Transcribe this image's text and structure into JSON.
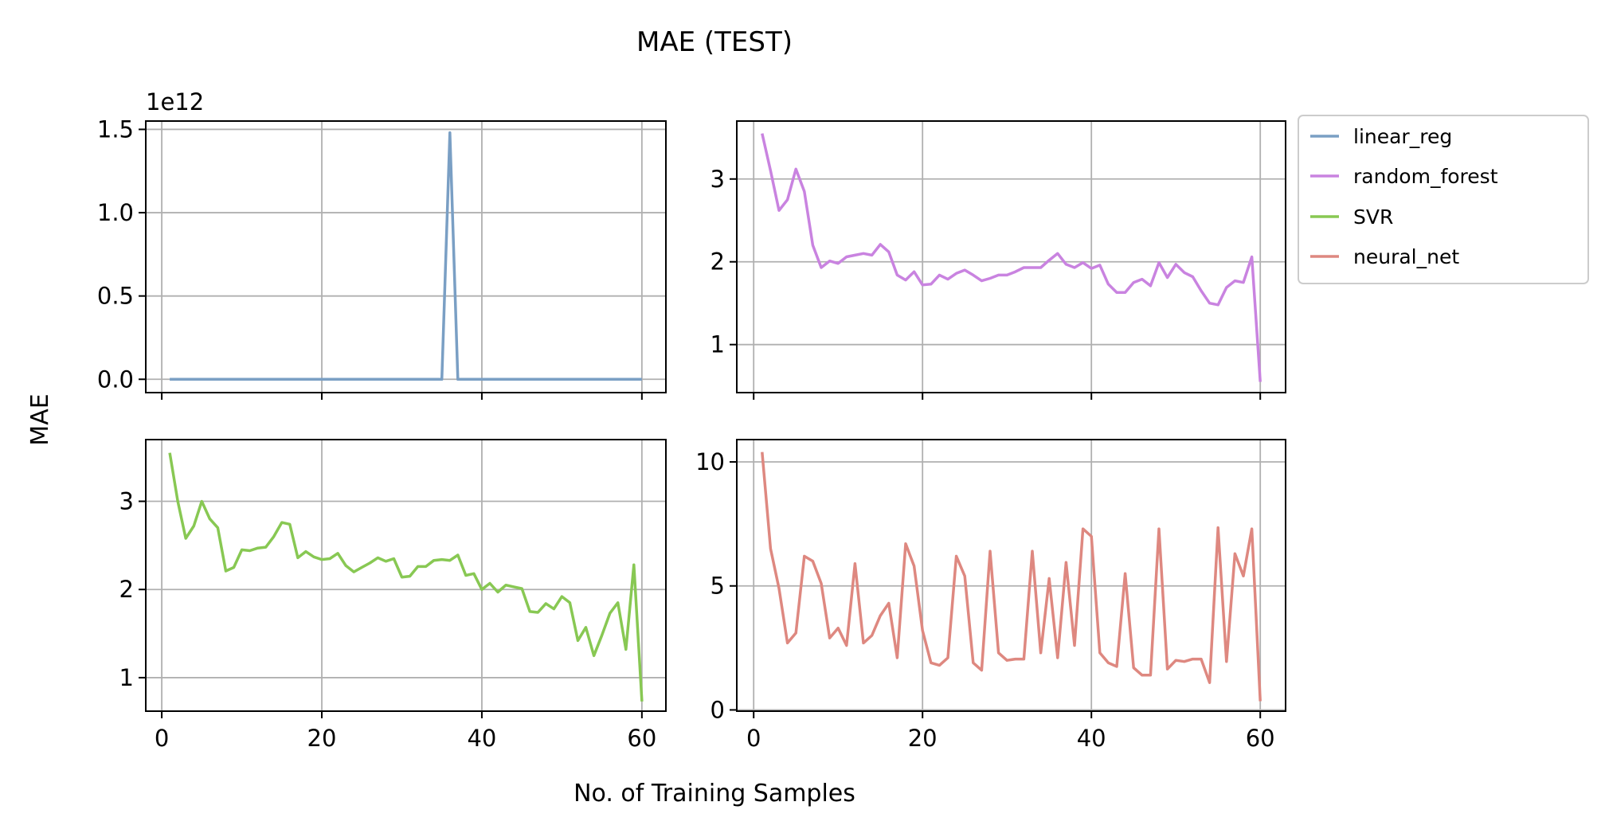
{
  "figure": {
    "title": "MAE (TEST)",
    "xlabel": "No. of Training Samples",
    "ylabel": "MAE"
  },
  "legend": {
    "placement": "right of top-right panel",
    "entries": [
      {
        "label": "linear_reg",
        "color": "#7a9fc4"
      },
      {
        "label": "random_forest",
        "color": "#c983e0"
      },
      {
        "label": "SVR",
        "color": "#88c853"
      },
      {
        "label": "neural_net",
        "color": "#de8880"
      }
    ]
  },
  "chart_data": [
    {
      "type": "line",
      "panel": "top-left",
      "series": [
        {
          "name": "linear_reg",
          "color": "#7a9fc4",
          "values": [
            0,
            0,
            0,
            0,
            0,
            0,
            0,
            0,
            0,
            0,
            0,
            0,
            0,
            0,
            0,
            0,
            0,
            0,
            0,
            0,
            0,
            0,
            0,
            0,
            0,
            0,
            0,
            0,
            0,
            0,
            0,
            0,
            0,
            0,
            0,
            1.48,
            0,
            0,
            0,
            0,
            0,
            0,
            0,
            0,
            0,
            0,
            0,
            0,
            0,
            0,
            0,
            0,
            0,
            0,
            0,
            0,
            0,
            0,
            0,
            0
          ]
        }
      ],
      "x": {
        "start": 1,
        "step": 1
      },
      "xlim": [
        -2,
        63
      ],
      "ylim": [
        -0.08,
        1.55
      ],
      "yticks": [
        0.0,
        0.5,
        1.0,
        1.5
      ],
      "ytick_labels": [
        "0.0",
        "0.5",
        "1.0",
        "1.5"
      ],
      "xticks": [
        0,
        20,
        40,
        60
      ],
      "xtick_labels": [],
      "offset_text": "1e12",
      "grid": true
    },
    {
      "type": "line",
      "panel": "top-right",
      "series": [
        {
          "name": "random_forest",
          "color": "#c983e0",
          "values": [
            3.55,
            3.1,
            2.62,
            2.75,
            3.12,
            2.85,
            2.2,
            1.93,
            2.01,
            1.98,
            2.06,
            2.08,
            2.1,
            2.08,
            2.21,
            2.12,
            1.84,
            1.78,
            1.88,
            1.72,
            1.73,
            1.84,
            1.79,
            1.86,
            1.9,
            1.84,
            1.77,
            1.8,
            1.84,
            1.84,
            1.88,
            1.93,
            1.93,
            1.93,
            2.02,
            2.1,
            1.97,
            1.93,
            1.99,
            1.92,
            1.96,
            1.73,
            1.63,
            1.63,
            1.75,
            1.79,
            1.71,
            1.99,
            1.81,
            1.97,
            1.87,
            1.82,
            1.65,
            1.5,
            1.48,
            1.69,
            1.77,
            1.75,
            2.06,
            0.55
          ]
        }
      ],
      "x": {
        "start": 1,
        "step": 1
      },
      "xlim": [
        -2,
        63
      ],
      "ylim": [
        0.42,
        3.7
      ],
      "yticks": [
        1,
        2,
        3
      ],
      "ytick_labels": [
        "1",
        "2",
        "3"
      ],
      "xticks": [
        0,
        20,
        40,
        60
      ],
      "xtick_labels": [],
      "grid": true
    },
    {
      "type": "line",
      "panel": "bottom-left",
      "series": [
        {
          "name": "SVR",
          "color": "#88c853",
          "values": [
            3.55,
            3.0,
            2.58,
            2.72,
            3.0,
            2.8,
            2.7,
            2.21,
            2.25,
            2.45,
            2.44,
            2.47,
            2.48,
            2.6,
            2.76,
            2.74,
            2.36,
            2.43,
            2.37,
            2.34,
            2.35,
            2.41,
            2.27,
            2.2,
            2.25,
            2.3,
            2.36,
            2.32,
            2.35,
            2.14,
            2.15,
            2.26,
            2.26,
            2.33,
            2.34,
            2.33,
            2.39,
            2.16,
            2.18,
            2.0,
            2.07,
            1.97,
            2.05,
            2.03,
            2.01,
            1.75,
            1.74,
            1.84,
            1.78,
            1.92,
            1.85,
            1.42,
            1.57,
            1.25,
            1.48,
            1.73,
            1.85,
            1.32,
            2.28,
            0.73
          ]
        }
      ],
      "x": {
        "start": 1,
        "step": 1
      },
      "xlim": [
        -2,
        63
      ],
      "ylim": [
        0.62,
        3.7
      ],
      "yticks": [
        1,
        2,
        3
      ],
      "ytick_labels": [
        "1",
        "2",
        "3"
      ],
      "xticks": [
        0,
        20,
        40,
        60
      ],
      "xtick_labels": [
        "0",
        "20",
        "40",
        "60"
      ],
      "grid": true
    },
    {
      "type": "line",
      "panel": "bottom-right",
      "series": [
        {
          "name": "neural_net",
          "color": "#de8880",
          "values": [
            10.4,
            6.5,
            4.9,
            2.7,
            3.1,
            6.2,
            6.0,
            5.1,
            2.9,
            3.3,
            2.6,
            5.9,
            2.7,
            3.0,
            3.8,
            4.3,
            2.1,
            6.7,
            5.8,
            3.2,
            1.9,
            1.8,
            2.1,
            6.2,
            5.4,
            1.9,
            1.6,
            6.4,
            2.3,
            2.0,
            2.05,
            2.05,
            6.4,
            2.3,
            5.3,
            2.1,
            5.95,
            2.6,
            7.3,
            7.0,
            2.3,
            1.9,
            1.75,
            5.5,
            1.7,
            1.4,
            1.4,
            7.3,
            1.65,
            2.0,
            1.95,
            2.05,
            2.05,
            1.1,
            7.35,
            1.95,
            6.3,
            5.4,
            7.3,
            0.35
          ]
        }
      ],
      "x": {
        "start": 1,
        "step": 1
      },
      "xlim": [
        -2,
        63
      ],
      "ylim": [
        -0.05,
        10.9
      ],
      "yticks": [
        0,
        5,
        10
      ],
      "ytick_labels": [
        "0",
        "5",
        "10"
      ],
      "xticks": [
        0,
        20,
        40,
        60
      ],
      "xtick_labels": [
        "0",
        "20",
        "40",
        "60"
      ],
      "grid": true
    }
  ]
}
